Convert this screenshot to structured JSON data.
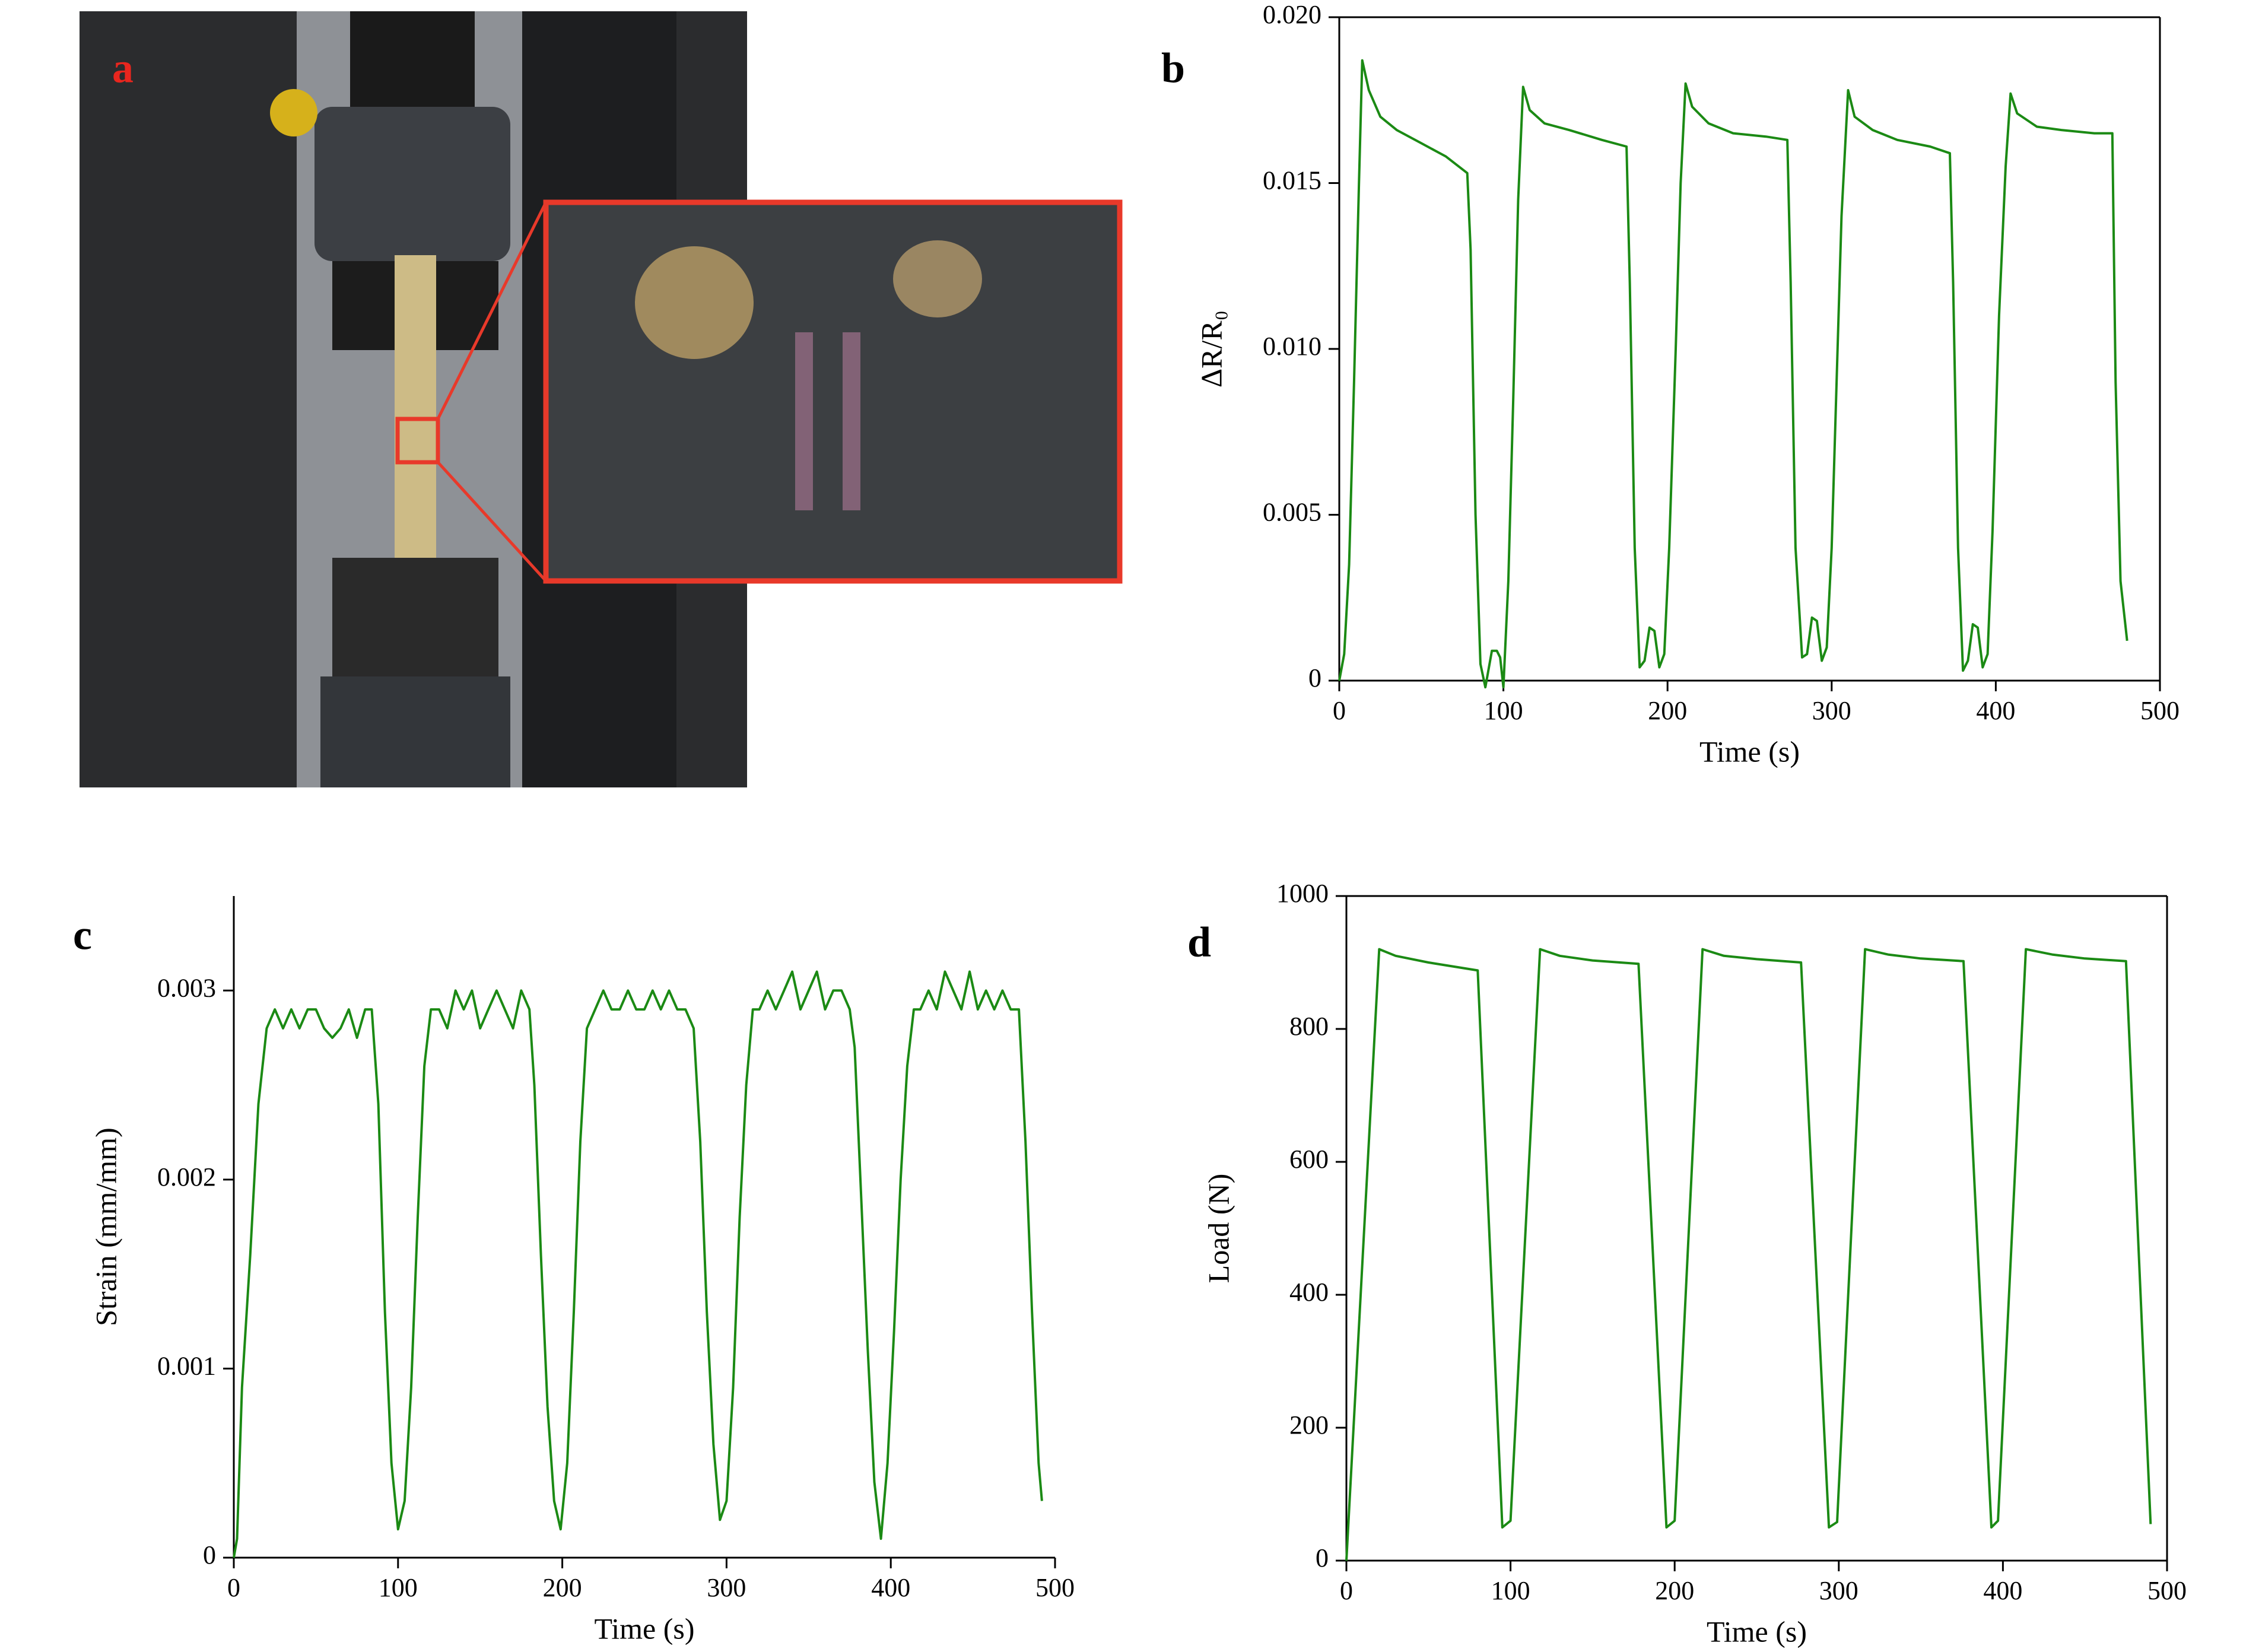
{
  "photo": {
    "label": "a"
  },
  "chart_data": [
    {
      "type": "line",
      "panel_label": "b",
      "x_label": "Time (s)",
      "y_label": "ΔR/R₀",
      "color": "#1b8a14",
      "box": true,
      "xlim": [
        0,
        500
      ],
      "xticks": [
        0,
        100,
        200,
        300,
        400,
        500
      ],
      "ylim": [
        0,
        0.02
      ],
      "yticks": [
        0,
        0.005,
        {
          "value": 0.01,
          "label": "0.010"
        },
        0.015,
        {
          "value": 0.02,
          "label": "0.020"
        }
      ],
      "x": [
        0,
        3,
        6,
        9,
        12,
        14,
        18,
        25,
        35,
        50,
        65,
        78,
        80,
        83,
        86,
        89,
        93,
        96,
        98,
        100,
        103,
        106,
        109,
        112,
        116,
        125,
        140,
        160,
        175,
        177,
        180,
        183,
        186,
        189,
        192,
        195,
        198,
        201,
        205,
        208,
        211,
        215,
        225,
        240,
        260,
        273,
        275,
        278,
        282,
        285,
        288,
        291,
        294,
        297,
        300,
        303,
        306,
        310,
        314,
        325,
        340,
        360,
        372,
        374,
        377,
        380,
        383,
        386,
        389,
        392,
        395,
        398,
        402,
        406,
        409,
        413,
        425,
        440,
        460,
        471,
        473,
        476,
        480
      ],
      "values": [
        0,
        0.0008,
        0.0035,
        0.009,
        0.015,
        0.0187,
        0.0178,
        0.017,
        0.0166,
        0.0162,
        0.0158,
        0.0153,
        0.013,
        0.005,
        0.0005,
        -0.0002,
        0.0009,
        0.0009,
        0.0007,
        -0.0002,
        0.003,
        0.0085,
        0.0145,
        0.0179,
        0.0172,
        0.0168,
        0.0166,
        0.0163,
        0.0161,
        0.012,
        0.004,
        0.0004,
        0.0006,
        0.0016,
        0.0015,
        0.0004,
        0.0008,
        0.004,
        0.01,
        0.015,
        0.018,
        0.0173,
        0.0168,
        0.0165,
        0.0164,
        0.0163,
        0.012,
        0.004,
        0.0007,
        0.0008,
        0.0019,
        0.0018,
        0.0006,
        0.001,
        0.004,
        0.009,
        0.014,
        0.0178,
        0.017,
        0.0166,
        0.0163,
        0.0161,
        0.0159,
        0.012,
        0.004,
        0.0003,
        0.0006,
        0.0017,
        0.0016,
        0.0004,
        0.0008,
        0.0045,
        0.011,
        0.0155,
        0.0177,
        0.0171,
        0.0167,
        0.0166,
        0.0165,
        0.0165,
        0.009,
        0.003,
        0.0012
      ]
    },
    {
      "type": "line",
      "panel_label": "c",
      "x_label": "Time (s)",
      "y_label": "Strain (mm/mm)",
      "color": "#1b8a14",
      "box": false,
      "xlim": [
        0,
        500
      ],
      "xticks": [
        0,
        100,
        200,
        300,
        400,
        500
      ],
      "ylim": [
        0,
        0.0035
      ],
      "yticks": [
        0,
        0.001,
        0.002,
        0.003
      ],
      "x": [
        0,
        2,
        5,
        10,
        15,
        20,
        25,
        30,
        35,
        40,
        45,
        50,
        55,
        60,
        65,
        70,
        75,
        80,
        84,
        88,
        92,
        96,
        100,
        104,
        108,
        112,
        116,
        120,
        125,
        130,
        135,
        140,
        145,
        150,
        155,
        160,
        165,
        170,
        175,
        180,
        183,
        187,
        191,
        195,
        199,
        203,
        207,
        211,
        215,
        220,
        225,
        230,
        235,
        240,
        245,
        250,
        255,
        260,
        265,
        270,
        275,
        280,
        284,
        288,
        292,
        296,
        300,
        304,
        308,
        312,
        316,
        320,
        325,
        330,
        335,
        340,
        345,
        350,
        355,
        360,
        365,
        370,
        375,
        378,
        382,
        386,
        390,
        394,
        398,
        402,
        406,
        410,
        414,
        418,
        423,
        428,
        433,
        438,
        443,
        448,
        453,
        458,
        463,
        468,
        473,
        478,
        482,
        486,
        490,
        492
      ],
      "values": [
        0,
        0.0001,
        0.0009,
        0.0016,
        0.0024,
        0.0028,
        0.0029,
        0.0028,
        0.0029,
        0.0028,
        0.0029,
        0.0029,
        0.0028,
        0.00275,
        0.0028,
        0.0029,
        0.00275,
        0.0029,
        0.0029,
        0.0024,
        0.0013,
        0.0005,
        0.00015,
        0.0003,
        0.0009,
        0.0018,
        0.0026,
        0.0029,
        0.0029,
        0.0028,
        0.003,
        0.0029,
        0.003,
        0.0028,
        0.0029,
        0.003,
        0.0029,
        0.0028,
        0.003,
        0.0029,
        0.0025,
        0.0016,
        0.0008,
        0.0003,
        0.00015,
        0.0005,
        0.0013,
        0.0022,
        0.0028,
        0.0029,
        0.003,
        0.0029,
        0.0029,
        0.003,
        0.0029,
        0.0029,
        0.003,
        0.0029,
        0.003,
        0.0029,
        0.0029,
        0.0028,
        0.0022,
        0.0013,
        0.0006,
        0.0002,
        0.0003,
        0.0009,
        0.0018,
        0.0025,
        0.0029,
        0.0029,
        0.003,
        0.0029,
        0.003,
        0.0031,
        0.0029,
        0.003,
        0.0031,
        0.0029,
        0.003,
        0.003,
        0.0029,
        0.0027,
        0.0019,
        0.0011,
        0.0004,
        0.0001,
        0.0005,
        0.0012,
        0.002,
        0.0026,
        0.0029,
        0.0029,
        0.003,
        0.0029,
        0.0031,
        0.003,
        0.0029,
        0.0031,
        0.0029,
        0.003,
        0.0029,
        0.003,
        0.0029,
        0.0029,
        0.0022,
        0.0013,
        0.0005,
        0.0003
      ]
    },
    {
      "type": "line",
      "panel_label": "d",
      "x_label": "Time (s)",
      "y_label": "Load (N)",
      "color": "#1b8a14",
      "box": true,
      "xlim": [
        0,
        500
      ],
      "xticks": [
        0,
        100,
        200,
        300,
        400,
        500
      ],
      "ylim": [
        0,
        1000
      ],
      "yticks": [
        0,
        200,
        400,
        600,
        800,
        1000
      ],
      "x": [
        0,
        20,
        30,
        50,
        80,
        95,
        100,
        118,
        130,
        150,
        178,
        195,
        200,
        217,
        230,
        250,
        277,
        294,
        299,
        316,
        330,
        350,
        376,
        393,
        397,
        414,
        430,
        450,
        475,
        490
      ],
      "values": [
        0,
        920,
        910,
        900,
        888,
        50,
        60,
        920,
        910,
        903,
        898,
        50,
        60,
        920,
        910,
        905,
        900,
        50,
        58,
        920,
        912,
        906,
        902,
        50,
        60,
        920,
        912,
        906,
        902,
        55
      ]
    }
  ]
}
